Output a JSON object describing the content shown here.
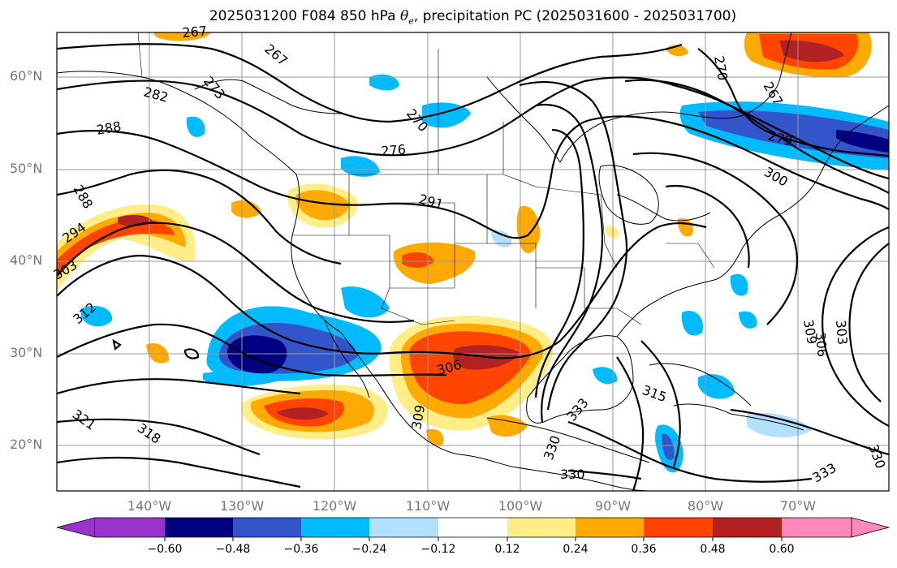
{
  "title": {
    "prefix": "2025031200 F084 850 hPa ",
    "theta_symbol": "θ",
    "theta_sub": "e",
    "suffix": ", precipitation PC (2025031600 - 2025031700)"
  },
  "map": {
    "lat_labels": [
      "60°N",
      "50°N",
      "40°N",
      "30°N",
      "20°N"
    ],
    "lon_labels": [
      "140°W",
      "130°W",
      "120°W",
      "110°W",
      "100°W",
      "90°W",
      "80°W",
      "70°W"
    ],
    "contour_labels": [
      "267",
      "273",
      "282",
      "288",
      "276",
      "270",
      "270",
      "267",
      "279",
      "300",
      "288",
      "294",
      "303",
      "291",
      "312",
      "309",
      "306",
      "303",
      "306",
      "315",
      "333",
      "330",
      "333",
      "330",
      "321",
      "318",
      "309",
      "330"
    ]
  },
  "colorbar": {
    "ticks": [
      "−0.60",
      "−0.48",
      "−0.36",
      "−0.24",
      "−0.12",
      "0.12",
      "0.24",
      "0.36",
      "0.48",
      "0.60"
    ],
    "colors": [
      "#9933cc",
      "#000080",
      "#3355cc",
      "#00bbff",
      "#b3e0ff",
      "#ffffff",
      "#ffee88",
      "#ffaa00",
      "#ff4400",
      "#b22222",
      "#ff88bb"
    ]
  }
}
